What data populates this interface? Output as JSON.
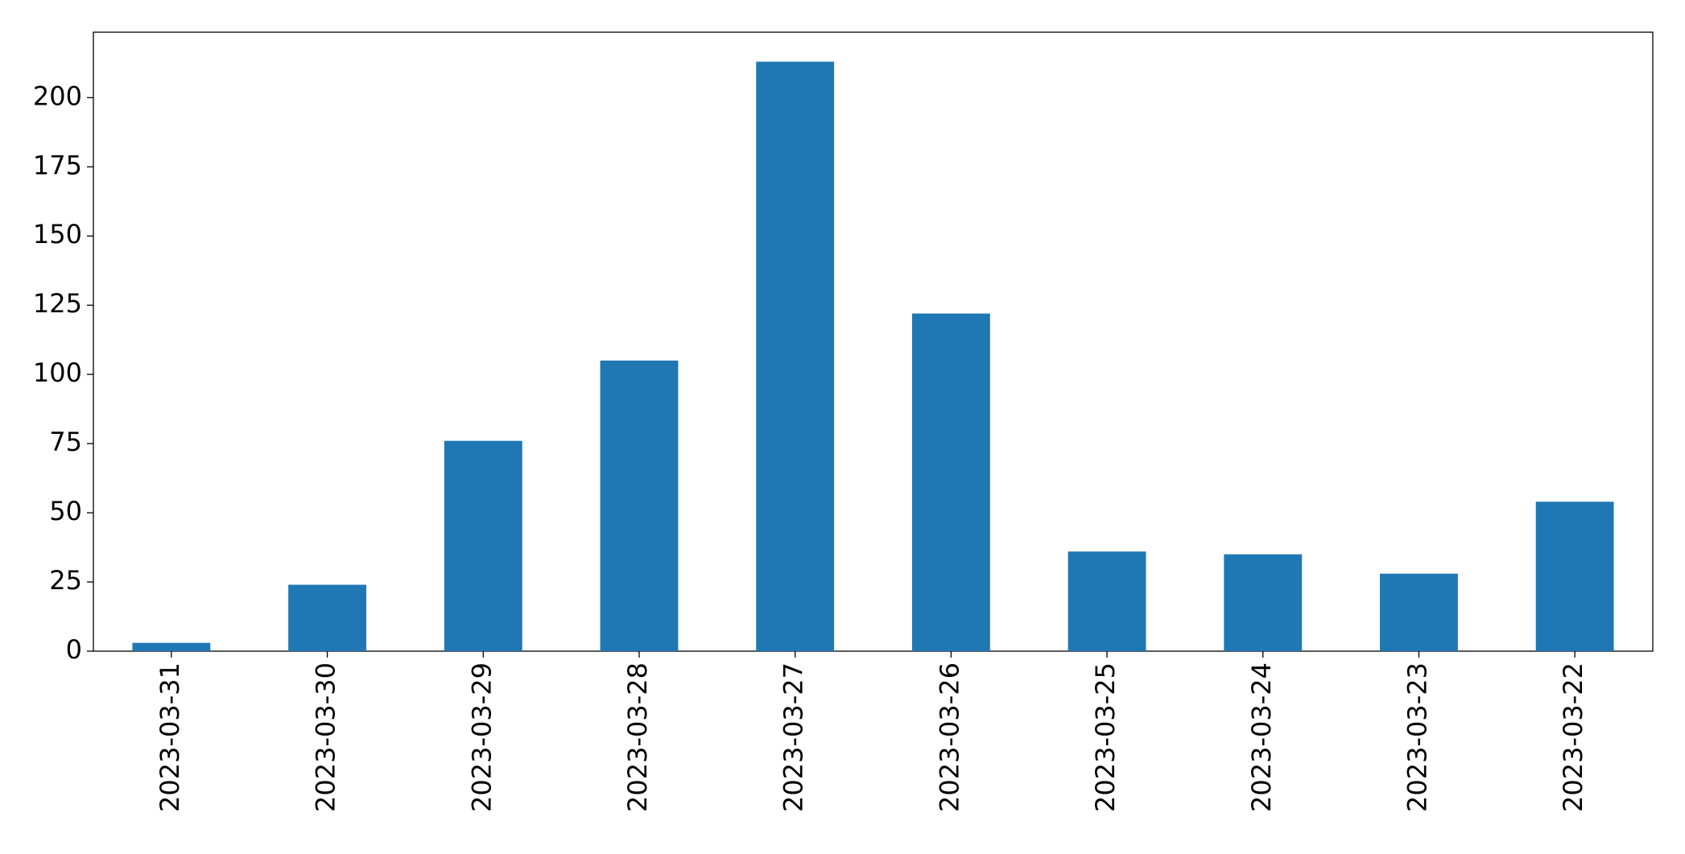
{
  "chart_data": {
    "type": "bar",
    "categories": [
      "2023-03-31",
      "2023-03-30",
      "2023-03-29",
      "2023-03-28",
      "2023-03-27",
      "2023-03-26",
      "2023-03-25",
      "2023-03-24",
      "2023-03-23",
      "2023-03-22"
    ],
    "values": [
      3,
      24,
      76,
      105,
      213,
      122,
      36,
      35,
      28,
      54
    ],
    "color": "#1f77b4",
    "ylim": [
      0,
      223.65
    ],
    "yticks": [
      0,
      25,
      50,
      75,
      100,
      125,
      150,
      175,
      200
    ],
    "grid": false
  }
}
